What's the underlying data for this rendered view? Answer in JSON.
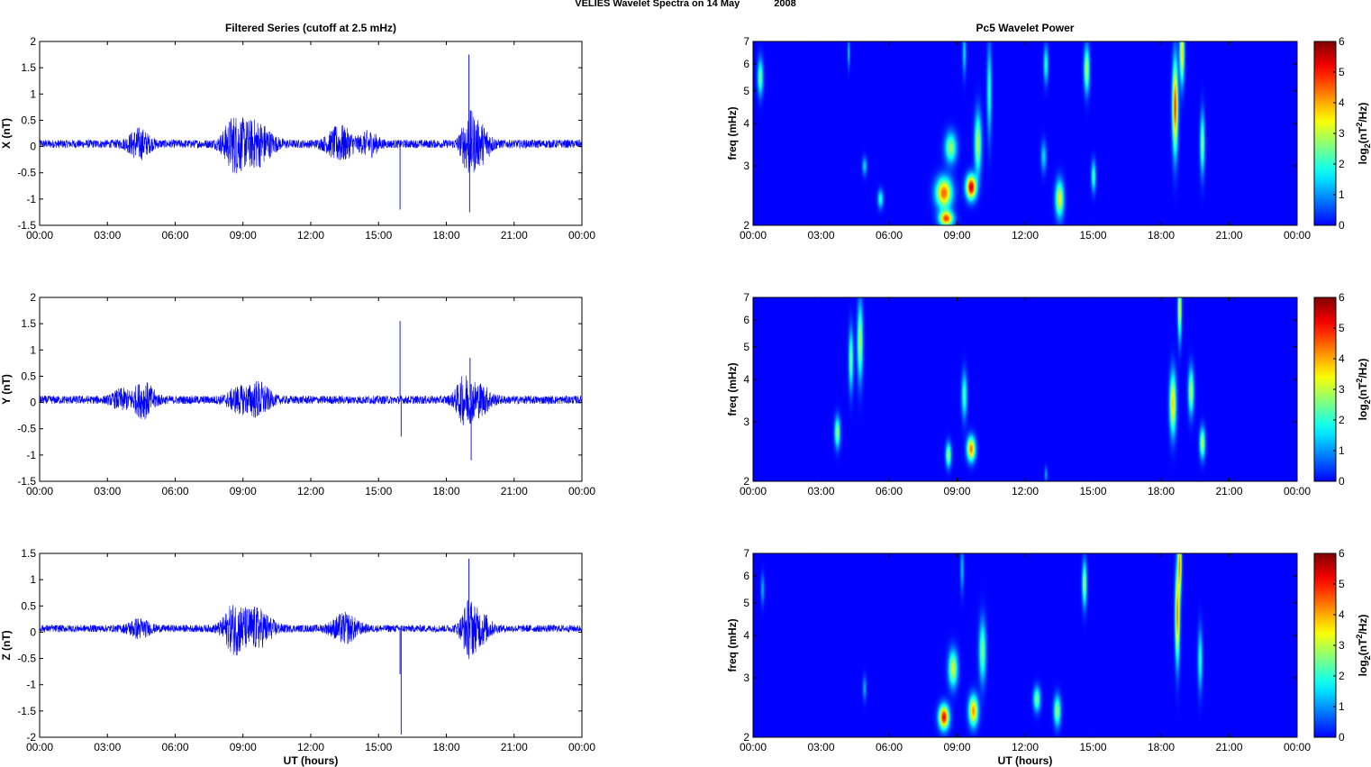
{
  "figure": {
    "title_parts": [
      "VELIES Wavelet Spectra on 14 May",
      "2008"
    ],
    "left_column_title": "Filtered Series (cutoff at 2.5 mHz)",
    "right_column_title": "Pc5 Wavelet Power"
  },
  "chart_data": [
    {
      "type": "line",
      "component": "X",
      "ylabel": "X (nT)",
      "xlabel": "",
      "x_unit": "UT hours",
      "x_tick_labels": [
        "00:00",
        "03:00",
        "06:00",
        "09:00",
        "12:00",
        "15:00",
        "18:00",
        "21:00",
        "00:00"
      ],
      "x_ticks": [
        0,
        3,
        6,
        9,
        12,
        15,
        18,
        21,
        24
      ],
      "xlim": [
        0,
        24
      ],
      "ylim": [
        -1.5,
        2
      ],
      "y_ticks": [
        -1.5,
        -1,
        -0.5,
        0,
        0.5,
        1,
        1.5,
        2
      ],
      "y_tick_labels": [
        "-1.5",
        "-1",
        "-0.5",
        "0",
        "0.5",
        "1",
        "1.5",
        "2"
      ],
      "color": "#0000ff",
      "baseline_offset": 0.05,
      "noise_amplitude": 0.08,
      "activity_bursts": [
        {
          "center": 4.4,
          "width": 0.5,
          "amplitude": 0.25
        },
        {
          "center": 8.6,
          "width": 0.5,
          "amplitude": 0.45
        },
        {
          "center": 9.6,
          "width": 0.7,
          "amplitude": 0.4
        },
        {
          "center": 13.3,
          "width": 0.6,
          "amplitude": 0.3
        },
        {
          "center": 14.6,
          "width": 0.4,
          "amplitude": 0.2
        },
        {
          "center": 19.0,
          "width": 0.35,
          "amplitude": 0.55
        },
        {
          "center": 19.6,
          "width": 0.4,
          "amplitude": 0.3
        }
      ],
      "spikes": [
        {
          "x": 15.95,
          "y": -1.2
        },
        {
          "x": 19.0,
          "y": 1.75
        },
        {
          "x": 19.03,
          "y": -1.25
        }
      ]
    },
    {
      "type": "line",
      "component": "Y",
      "ylabel": "Y (nT)",
      "xlabel": "",
      "x_unit": "UT hours",
      "x_tick_labels": [
        "00:00",
        "03:00",
        "06:00",
        "09:00",
        "12:00",
        "15:00",
        "18:00",
        "21:00",
        "00:00"
      ],
      "x_ticks": [
        0,
        3,
        6,
        9,
        12,
        15,
        18,
        21,
        24
      ],
      "xlim": [
        0,
        24
      ],
      "ylim": [
        -1.5,
        2
      ],
      "y_ticks": [
        -1.5,
        -1,
        -0.5,
        0,
        0.5,
        1,
        1.5,
        2
      ],
      "y_tick_labels": [
        "-1.5",
        "-1",
        "-0.5",
        "0",
        "0.5",
        "1",
        "1.5",
        "2"
      ],
      "color": "#0000ff",
      "baseline_offset": 0.05,
      "noise_amplitude": 0.08,
      "activity_bursts": [
        {
          "center": 3.6,
          "width": 0.4,
          "amplitude": 0.15
        },
        {
          "center": 4.6,
          "width": 0.5,
          "amplitude": 0.3
        },
        {
          "center": 8.8,
          "width": 0.5,
          "amplitude": 0.2
        },
        {
          "center": 9.7,
          "width": 0.5,
          "amplitude": 0.3
        },
        {
          "center": 18.8,
          "width": 0.4,
          "amplitude": 0.4
        },
        {
          "center": 19.5,
          "width": 0.5,
          "amplitude": 0.25
        }
      ],
      "spikes": [
        {
          "x": 15.95,
          "y": 1.55
        },
        {
          "x": 16.0,
          "y": -0.65
        },
        {
          "x": 19.1,
          "y": -1.1
        },
        {
          "x": 19.05,
          "y": 0.85
        }
      ]
    },
    {
      "type": "line",
      "component": "Z",
      "ylabel": "Z (nT)",
      "xlabel": "UT (hours)",
      "x_unit": "UT hours",
      "x_tick_labels": [
        "00:00",
        "03:00",
        "06:00",
        "09:00",
        "12:00",
        "15:00",
        "18:00",
        "21:00",
        "00:00"
      ],
      "x_ticks": [
        0,
        3,
        6,
        9,
        12,
        15,
        18,
        21,
        24
      ],
      "xlim": [
        0,
        24
      ],
      "ylim": [
        -2,
        1.5
      ],
      "y_ticks": [
        -2,
        -1.5,
        -1,
        -0.5,
        0,
        0.5,
        1,
        1.5
      ],
      "y_tick_labels": [
        "-2",
        "-1.5",
        "-1",
        "-0.5",
        "0",
        "0.5",
        "1",
        "1.5"
      ],
      "color": "#0000ff",
      "baseline_offset": 0.07,
      "noise_amplitude": 0.07,
      "activity_bursts": [
        {
          "center": 4.4,
          "width": 0.5,
          "amplitude": 0.15
        },
        {
          "center": 8.6,
          "width": 0.5,
          "amplitude": 0.4
        },
        {
          "center": 9.6,
          "width": 0.7,
          "amplitude": 0.35
        },
        {
          "center": 13.5,
          "width": 0.6,
          "amplitude": 0.25
        },
        {
          "center": 19.0,
          "width": 0.35,
          "amplitude": 0.5
        },
        {
          "center": 19.6,
          "width": 0.4,
          "amplitude": 0.25
        }
      ],
      "spikes": [
        {
          "x": 15.95,
          "y": -0.8
        },
        {
          "x": 16.0,
          "y": -1.95
        },
        {
          "x": 19.0,
          "y": 1.4
        }
      ]
    },
    {
      "type": "heatmap",
      "component": "X",
      "ylabel": "freq (mHz)",
      "xlabel": "",
      "x_tick_labels": [
        "00:00",
        "03:00",
        "06:00",
        "09:00",
        "12:00",
        "15:00",
        "18:00",
        "21:00",
        "00:00"
      ],
      "x_ticks": [
        0,
        3,
        6,
        9,
        12,
        15,
        18,
        21,
        24
      ],
      "xlim": [
        0,
        24
      ],
      "y_scale": "log",
      "ylim": [
        2,
        7
      ],
      "y_ticks": [
        2,
        3,
        4,
        5,
        6,
        7
      ],
      "y_tick_labels": [
        "2",
        "3",
        "4",
        "5",
        "6",
        "7"
      ],
      "colorbar": {
        "label": "log2(nT^2/Hz)",
        "label_base": "log",
        "label_sub": "2",
        "label_body": "(nT",
        "label_sup": "2",
        "label_tail": "/Hz)",
        "range": [
          0,
          6
        ],
        "ticks": [
          "0",
          "1",
          "2",
          "3",
          "4",
          "5",
          "6"
        ],
        "colormap": "jet"
      },
      "blobs": [
        {
          "t": 0.3,
          "f": 5.5,
          "dt": 0.12,
          "df": 0.12,
          "v": 2.5
        },
        {
          "t": 4.2,
          "f": 6.5,
          "dt": 0.05,
          "df": 0.1,
          "v": 1.5
        },
        {
          "t": 4.9,
          "f": 3.0,
          "dt": 0.1,
          "df": 0.06,
          "v": 1.5
        },
        {
          "t": 5.6,
          "f": 2.4,
          "dt": 0.12,
          "df": 0.06,
          "v": 2.0
        },
        {
          "t": 8.4,
          "f": 2.5,
          "dt": 0.35,
          "df": 0.1,
          "v": 4.5
        },
        {
          "t": 8.5,
          "f": 2.1,
          "dt": 0.3,
          "df": 0.05,
          "v": 4.6
        },
        {
          "t": 9.6,
          "f": 2.6,
          "dt": 0.22,
          "df": 0.08,
          "v": 5.5
        },
        {
          "t": 8.7,
          "f": 3.4,
          "dt": 0.25,
          "df": 0.1,
          "v": 2.8
        },
        {
          "t": 9.9,
          "f": 3.5,
          "dt": 0.15,
          "df": 0.2,
          "v": 3.0
        },
        {
          "t": 10.4,
          "f": 5.0,
          "dt": 0.1,
          "df": 0.3,
          "v": 2.0
        },
        {
          "t": 9.3,
          "f": 6.5,
          "dt": 0.08,
          "df": 0.15,
          "v": 1.5
        },
        {
          "t": 12.8,
          "f": 3.2,
          "dt": 0.12,
          "df": 0.1,
          "v": 1.5
        },
        {
          "t": 13.5,
          "f": 2.4,
          "dt": 0.18,
          "df": 0.12,
          "v": 3.4
        },
        {
          "t": 12.9,
          "f": 6.0,
          "dt": 0.1,
          "df": 0.12,
          "v": 2.0
        },
        {
          "t": 14.7,
          "f": 5.8,
          "dt": 0.12,
          "df": 0.15,
          "v": 3.0
        },
        {
          "t": 15.0,
          "f": 2.8,
          "dt": 0.1,
          "df": 0.1,
          "v": 2.2
        },
        {
          "t": 18.6,
          "f": 4.5,
          "dt": 0.12,
          "df": 0.3,
          "v": 4.8
        },
        {
          "t": 18.9,
          "f": 6.5,
          "dt": 0.1,
          "df": 0.2,
          "v": 3.8
        },
        {
          "t": 19.8,
          "f": 3.5,
          "dt": 0.1,
          "df": 0.2,
          "v": 2.6
        }
      ]
    },
    {
      "type": "heatmap",
      "component": "Y",
      "ylabel": "freq (mHz)",
      "xlabel": "",
      "x_tick_labels": [
        "00:00",
        "03:00",
        "06:00",
        "09:00",
        "12:00",
        "15:00",
        "18:00",
        "21:00",
        "00:00"
      ],
      "x_ticks": [
        0,
        3,
        6,
        9,
        12,
        15,
        18,
        21,
        24
      ],
      "xlim": [
        0,
        24
      ],
      "y_scale": "log",
      "ylim": [
        2,
        7
      ],
      "y_ticks": [
        2,
        3,
        4,
        5,
        6,
        7
      ],
      "y_tick_labels": [
        "2",
        "3",
        "4",
        "5",
        "6",
        "7"
      ],
      "colorbar": {
        "label": "log2(nT^2/Hz)",
        "label_base": "log",
        "label_sub": "2",
        "label_body": "(nT",
        "label_sup": "2",
        "label_tail": "/Hz)",
        "range": [
          0,
          6
        ],
        "ticks": [
          "0",
          "1",
          "2",
          "3",
          "4",
          "5",
          "6"
        ],
        "colormap": "jet"
      },
      "blobs": [
        {
          "t": 3.7,
          "f": 2.8,
          "dt": 0.12,
          "df": 0.1,
          "v": 2.8
        },
        {
          "t": 4.3,
          "f": 4.6,
          "dt": 0.1,
          "df": 0.2,
          "v": 2.5
        },
        {
          "t": 4.7,
          "f": 5.2,
          "dt": 0.12,
          "df": 0.25,
          "v": 3.0
        },
        {
          "t": 8.6,
          "f": 2.4,
          "dt": 0.12,
          "df": 0.08,
          "v": 2.8
        },
        {
          "t": 9.6,
          "f": 2.5,
          "dt": 0.18,
          "df": 0.08,
          "v": 4.4
        },
        {
          "t": 9.3,
          "f": 3.6,
          "dt": 0.12,
          "df": 0.15,
          "v": 2.2
        },
        {
          "t": 12.9,
          "f": 2.1,
          "dt": 0.06,
          "df": 0.05,
          "v": 1.2
        },
        {
          "t": 18.5,
          "f": 3.4,
          "dt": 0.14,
          "df": 0.2,
          "v": 3.8
        },
        {
          "t": 18.8,
          "f": 6.5,
          "dt": 0.08,
          "df": 0.2,
          "v": 3.5
        },
        {
          "t": 19.3,
          "f": 3.7,
          "dt": 0.12,
          "df": 0.15,
          "v": 3.0
        },
        {
          "t": 19.8,
          "f": 2.6,
          "dt": 0.12,
          "df": 0.1,
          "v": 3.0
        }
      ]
    },
    {
      "type": "heatmap",
      "component": "Z",
      "ylabel": "freq (mHz)",
      "xlabel": "UT (hours)",
      "x_tick_labels": [
        "00:00",
        "03:00",
        "06:00",
        "09:00",
        "12:00",
        "15:00",
        "18:00",
        "21:00",
        "00:00"
      ],
      "x_ticks": [
        0,
        3,
        6,
        9,
        12,
        15,
        18,
        21,
        24
      ],
      "xlim": [
        0,
        24
      ],
      "y_scale": "log",
      "ylim": [
        2,
        7
      ],
      "y_ticks": [
        2,
        3,
        4,
        5,
        6,
        7
      ],
      "y_tick_labels": [
        "2",
        "3",
        "4",
        "5",
        "6",
        "7"
      ],
      "colorbar": {
        "label": "log2(nT^2/Hz)",
        "label_base": "log",
        "label_sub": "2",
        "label_body": "(nT",
        "label_sup": "2",
        "label_tail": "/Hz)",
        "range": [
          0,
          6
        ],
        "ticks": [
          "0",
          "1",
          "2",
          "3",
          "4",
          "5",
          "6"
        ],
        "colormap": "jet"
      },
      "blobs": [
        {
          "t": 0.4,
          "f": 5.5,
          "dt": 0.08,
          "df": 0.1,
          "v": 1.2
        },
        {
          "t": 4.9,
          "f": 2.8,
          "dt": 0.08,
          "df": 0.08,
          "v": 1.2
        },
        {
          "t": 8.4,
          "f": 2.3,
          "dt": 0.22,
          "df": 0.08,
          "v": 5.2
        },
        {
          "t": 8.8,
          "f": 3.2,
          "dt": 0.2,
          "df": 0.12,
          "v": 3.2
        },
        {
          "t": 9.7,
          "f": 2.4,
          "dt": 0.2,
          "df": 0.1,
          "v": 4.2
        },
        {
          "t": 10.1,
          "f": 3.6,
          "dt": 0.15,
          "df": 0.2,
          "v": 2.6
        },
        {
          "t": 9.2,
          "f": 6.3,
          "dt": 0.08,
          "df": 0.15,
          "v": 1.3
        },
        {
          "t": 12.5,
          "f": 2.6,
          "dt": 0.15,
          "df": 0.08,
          "v": 2.6
        },
        {
          "t": 13.4,
          "f": 2.4,
          "dt": 0.15,
          "df": 0.1,
          "v": 2.8
        },
        {
          "t": 14.6,
          "f": 5.7,
          "dt": 0.1,
          "df": 0.15,
          "v": 2.8
        },
        {
          "t": 18.7,
          "f": 4.6,
          "dt": 0.1,
          "df": 0.3,
          "v": 4.4
        },
        {
          "t": 18.8,
          "f": 6.6,
          "dt": 0.08,
          "df": 0.2,
          "v": 4.0
        },
        {
          "t": 19.7,
          "f": 3.4,
          "dt": 0.1,
          "df": 0.2,
          "v": 2.0
        }
      ]
    }
  ]
}
